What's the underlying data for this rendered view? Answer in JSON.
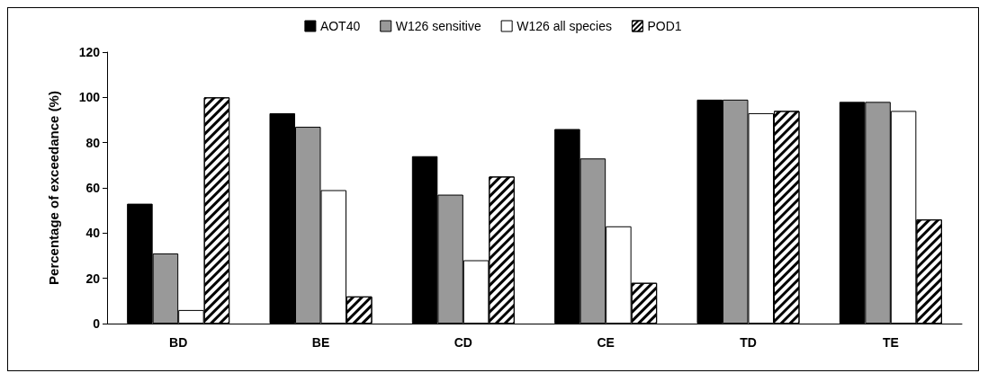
{
  "chart_data": {
    "type": "bar",
    "ylabel": "Percentage of exceedance (%)",
    "categories": [
      "BD",
      "BE",
      "CD",
      "CE",
      "TD",
      "TE"
    ],
    "series": [
      {
        "name": "AOT40",
        "color": "#000000",
        "values": [
          53,
          93,
          74,
          86,
          99,
          98
        ]
      },
      {
        "name": "W126 sensitive",
        "color": "#999999",
        "values": [
          31,
          87,
          57,
          73,
          99,
          98
        ]
      },
      {
        "name": "W126 all species",
        "color": "#ffffff",
        "values": [
          6,
          59,
          28,
          43,
          93,
          94
        ]
      },
      {
        "name": "POD1",
        "color": "#000000",
        "values": [
          100,
          12,
          65,
          18,
          94,
          46
        ]
      }
    ],
    "ylim": [
      0,
      120
    ],
    "yticks": [
      0,
      20,
      40,
      60,
      80,
      100,
      120
    ],
    "grid": false,
    "legend": "top"
  }
}
